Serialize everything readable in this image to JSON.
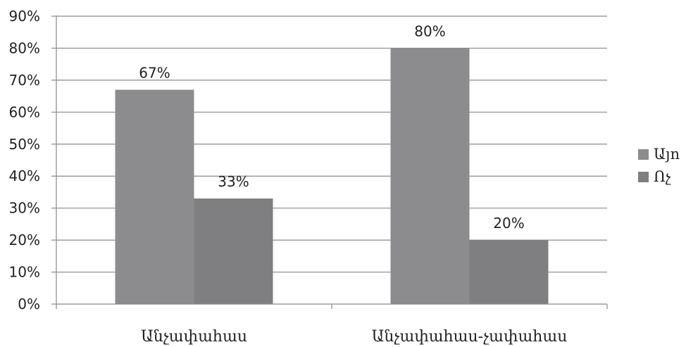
{
  "chart_data": {
    "type": "bar",
    "categories": [
      "Անչափահաս",
      "Անչափահաս-չափահաս"
    ],
    "series": [
      {
        "name": "Այո",
        "values": [
          67,
          80
        ],
        "labels": [
          "67%",
          "80%"
        ],
        "color": "#8c8c8e"
      },
      {
        "name": "Ոչ",
        "values": [
          33,
          20
        ],
        "labels": [
          "33%",
          "20%"
        ],
        "color": "#7f7f81"
      }
    ],
    "ylim": [
      0,
      90
    ],
    "yticks": [
      "0%",
      "10%",
      "20%",
      "30%",
      "40%",
      "50%",
      "60%",
      "70%",
      "80%",
      "90%"
    ],
    "unit": "%",
    "grid": true,
    "legend_position": "right"
  }
}
